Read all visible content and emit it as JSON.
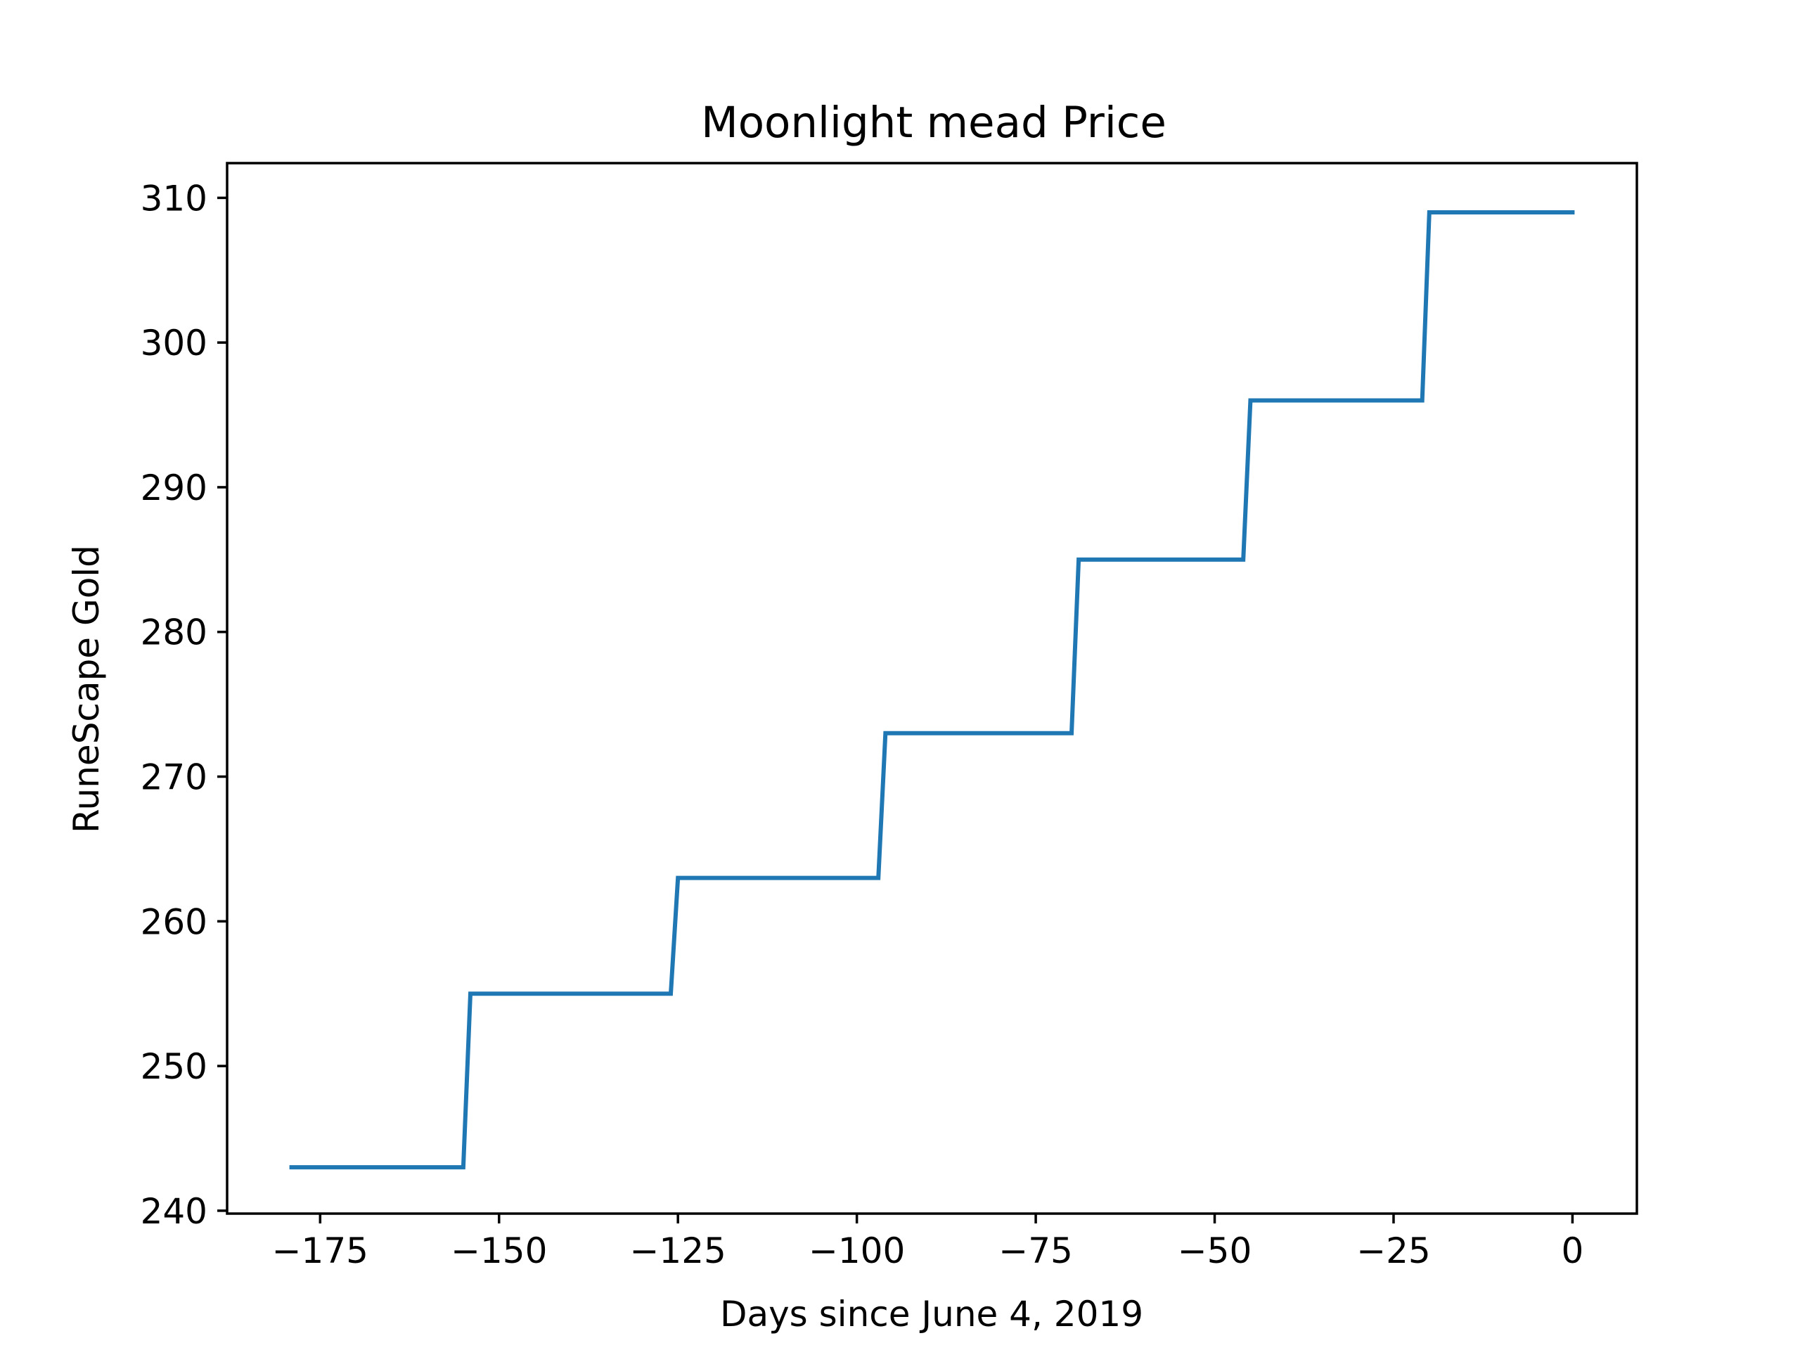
{
  "chart_data": {
    "type": "line",
    "title": "Moonlight mead Price",
    "xlabel": "Days since June 4, 2019",
    "ylabel": "RuneScape Gold",
    "xlim": [
      -188,
      9
    ],
    "ylim": [
      239.8,
      312.4
    ],
    "x_ticks": [
      {
        "value": -175,
        "label": "−175"
      },
      {
        "value": -150,
        "label": "−150"
      },
      {
        "value": -125,
        "label": "−125"
      },
      {
        "value": -100,
        "label": "−100"
      },
      {
        "value": -75,
        "label": "−75"
      },
      {
        "value": -50,
        "label": "−50"
      },
      {
        "value": -25,
        "label": "−25"
      },
      {
        "value": 0,
        "label": "0"
      }
    ],
    "y_ticks": [
      {
        "value": 240,
        "label": "240"
      },
      {
        "value": 250,
        "label": "250"
      },
      {
        "value": 260,
        "label": "260"
      },
      {
        "value": 270,
        "label": "270"
      },
      {
        "value": 280,
        "label": "280"
      },
      {
        "value": 290,
        "label": "290"
      },
      {
        "value": 300,
        "label": "300"
      },
      {
        "value": 310,
        "label": "310"
      }
    ],
    "grid": false,
    "series": [
      {
        "color": "#1f77b4",
        "x": [
          -179,
          -155,
          -154,
          -126,
          -125,
          -97,
          -96,
          -70,
          -69,
          -46,
          -45,
          -21,
          -20,
          0
        ],
        "y": [
          243,
          243,
          255,
          255,
          263,
          263,
          273,
          273,
          285,
          285,
          296,
          296,
          309,
          309
        ]
      }
    ]
  }
}
